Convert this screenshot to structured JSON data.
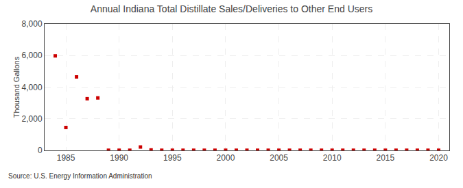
{
  "chart_data": {
    "type": "scatter",
    "title": "Annual Indiana Total Distillate Sales/Deliveries to Other End Users",
    "y_label": "Thousand Gallons",
    "annotations": [
      "Source: U.S. Energy Information Administration"
    ],
    "x": [
      1984,
      1985,
      1986,
      1987,
      1988,
      1989,
      1990,
      1991,
      1992,
      1993,
      1994,
      1995,
      1996,
      1997,
      1998,
      1999,
      2000,
      2001,
      2002,
      2003,
      2004,
      2005,
      2006,
      2007,
      2008,
      2009,
      2010,
      2011,
      2012,
      2013,
      2014,
      2015,
      2016,
      2017,
      2018,
      2019,
      2020
    ],
    "values": [
      5980,
      1450,
      4650,
      3270,
      3320,
      10,
      10,
      10,
      215,
      30,
      10,
      10,
      10,
      10,
      10,
      10,
      10,
      10,
      10,
      10,
      10,
      10,
      10,
      10,
      10,
      10,
      10,
      10,
      10,
      10,
      10,
      10,
      10,
      10,
      10,
      10,
      10
    ],
    "color": "#cc0000",
    "marker": "square",
    "xlim": [
      1983,
      2021
    ],
    "xticks": [
      1985,
      1990,
      1995,
      2000,
      2005,
      2010,
      2015,
      2020
    ],
    "ylim": [
      0,
      8000
    ],
    "yticks": [
      0,
      {
        "value": 2000,
        "label": "2,000"
      },
      {
        "value": 4000,
        "label": "4,000"
      },
      {
        "value": 6000,
        "label": "6,000"
      },
      {
        "value": 8000,
        "label": "8,000"
      }
    ],
    "grid": true
  }
}
